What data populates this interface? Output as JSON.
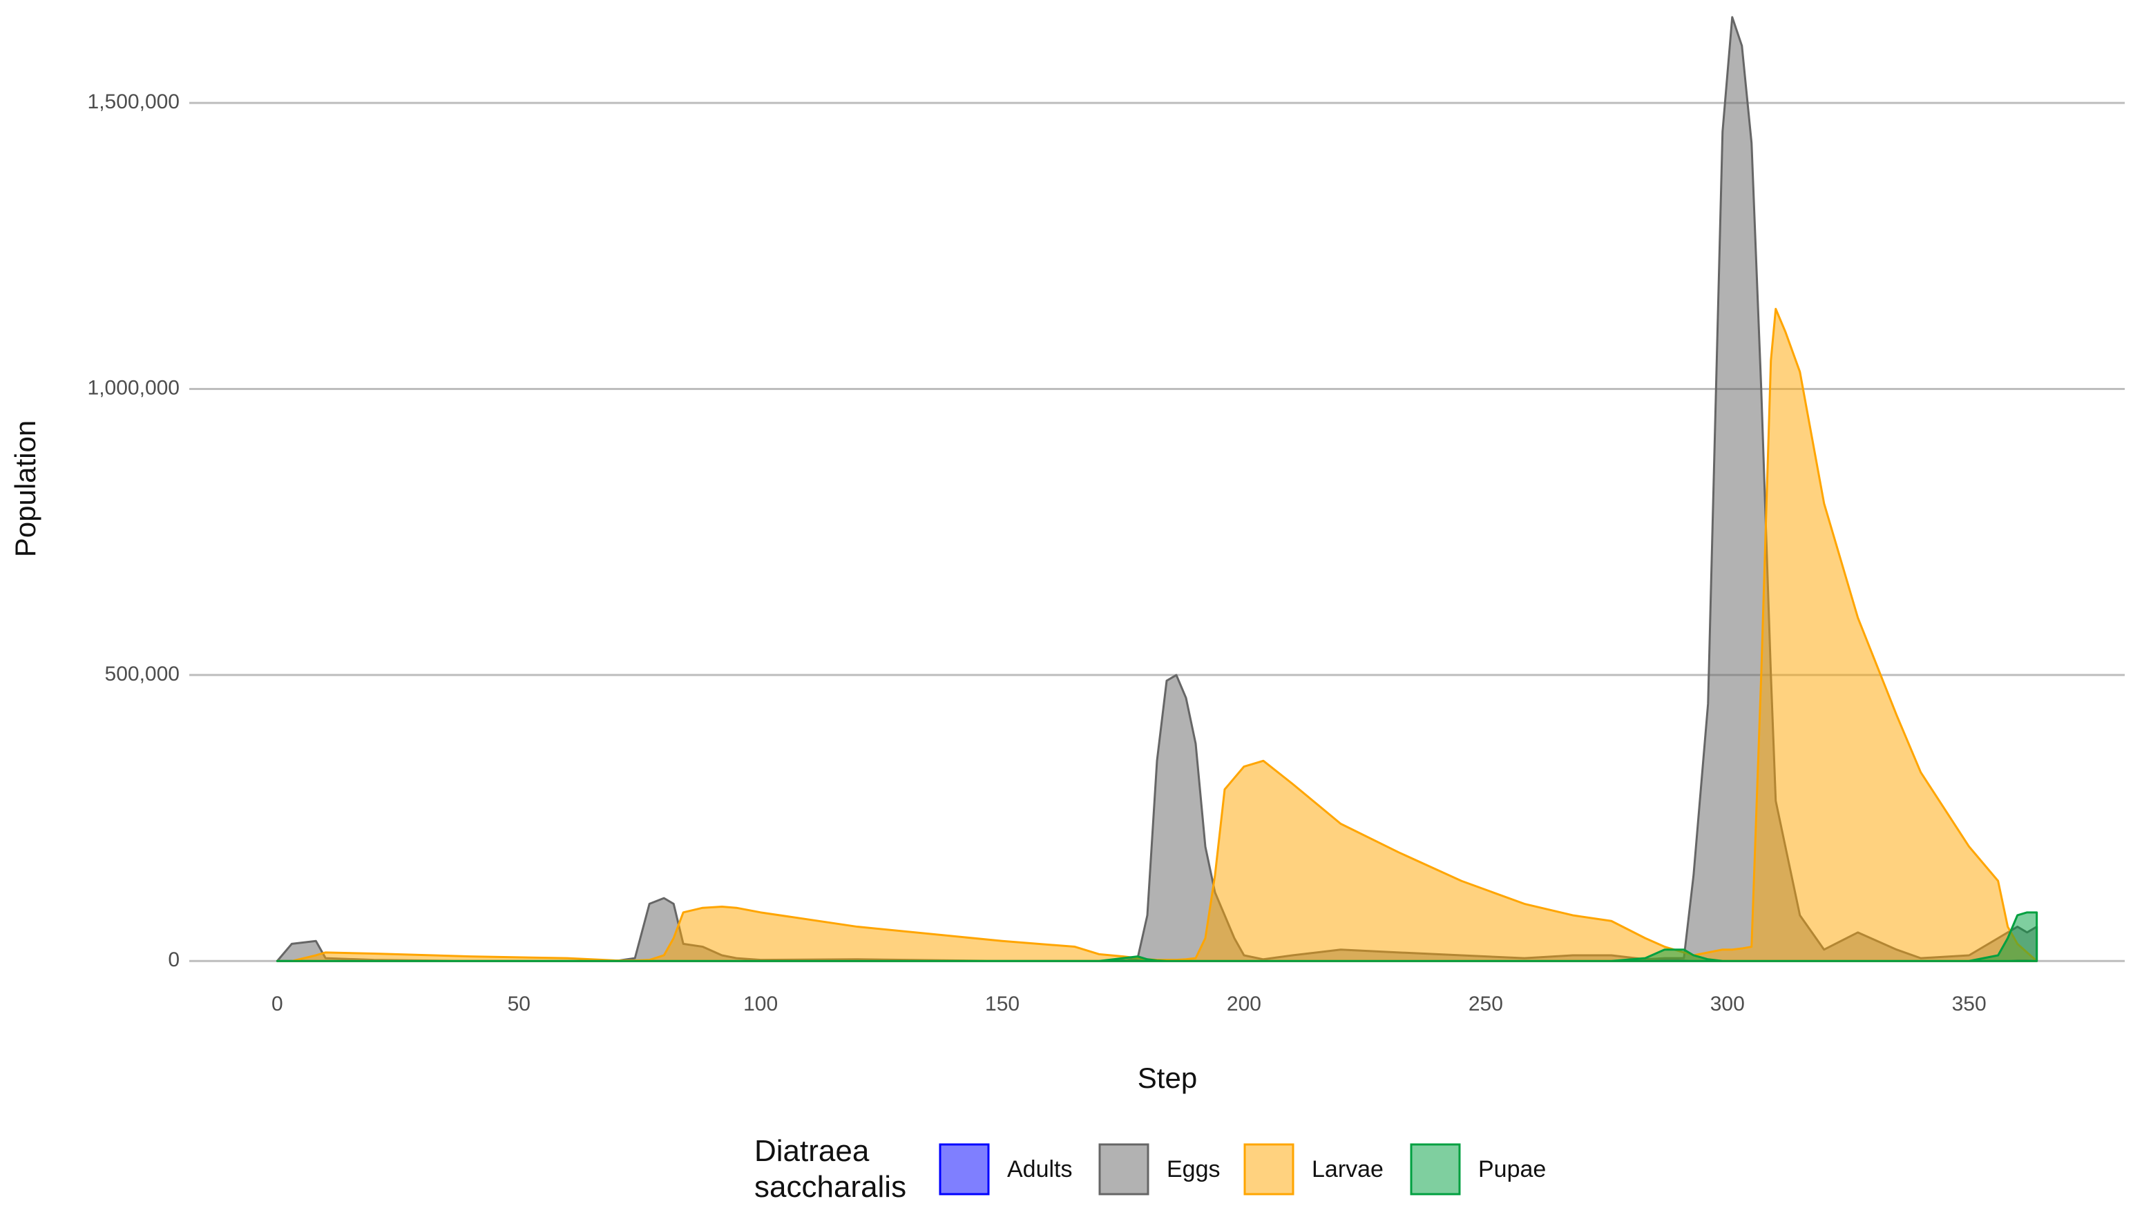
{
  "chart_data": {
    "type": "area",
    "x_label": "Step",
    "y_label": "Population",
    "legend_title": "Diatraea saccharalis",
    "legend_position": "bottom",
    "grid": true,
    "xlim": [
      -18.2,
      382.2
    ],
    "ylim": [
      -60000,
      1680000
    ],
    "xticks": [
      0,
      50,
      100,
      150,
      200,
      250,
      300,
      350
    ],
    "yticks": [
      0,
      {
        "value": 500000,
        "label": "500,000"
      },
      {
        "value": 1000000,
        "label": "1,000,000"
      },
      {
        "value": 1500000,
        "label": "1,500,000"
      }
    ],
    "x": [
      0,
      3,
      8,
      10,
      20,
      40,
      60,
      70,
      74,
      77,
      80,
      82,
      84,
      88,
      92,
      95,
      100,
      120,
      150,
      165,
      170,
      175,
      178,
      180,
      182,
      184,
      186,
      188,
      190,
      192,
      194,
      196,
      198,
      200,
      204,
      210,
      220,
      232,
      245,
      258,
      268,
      276,
      283,
      287,
      291,
      293,
      296,
      299,
      301,
      303,
      305,
      307,
      309,
      310,
      312,
      315,
      320,
      327,
      335,
      340,
      350,
      356,
      358,
      360,
      362,
      364
    ],
    "series": [
      {
        "name": "Adults",
        "color": "#0000ff",
        "values": [
          0,
          0,
          0,
          0,
          0,
          0,
          0,
          0,
          0,
          0,
          0,
          0,
          0,
          0,
          0,
          0,
          0,
          0,
          0,
          0,
          0,
          1000,
          1000,
          0,
          0,
          0,
          0,
          0,
          0,
          0,
          0,
          0,
          0,
          0,
          0,
          0,
          0,
          0,
          0,
          0,
          0,
          0,
          2000,
          3000,
          1000,
          0,
          0,
          0,
          0,
          0,
          0,
          0,
          0,
          0,
          0,
          0,
          0,
          0,
          0,
          0,
          0,
          0,
          0,
          1000,
          1000,
          0
        ]
      },
      {
        "name": "Eggs",
        "color": "#666666",
        "values": [
          0,
          30000,
          35000,
          5000,
          2000,
          0,
          0,
          0,
          5000,
          100000,
          110000,
          100000,
          30000,
          25000,
          10000,
          5000,
          2000,
          3000,
          0,
          0,
          0,
          0,
          5000,
          80000,
          350000,
          490000,
          500000,
          460000,
          380000,
          200000,
          120000,
          80000,
          40000,
          10000,
          3000,
          10000,
          20000,
          15000,
          10000,
          5000,
          10000,
          10000,
          3000,
          5000,
          5000,
          150000,
          450000,
          1450000,
          1650000,
          1600000,
          1430000,
          1000000,
          500000,
          280000,
          200000,
          80000,
          20000,
          50000,
          20000,
          5000,
          10000,
          40000,
          50000,
          60000,
          50000,
          60000
        ]
      },
      {
        "name": "Larvae",
        "color": "#ffa500",
        "values": [
          0,
          0,
          10000,
          15000,
          13000,
          8000,
          5000,
          1000,
          1000,
          2000,
          10000,
          40000,
          85000,
          93000,
          95000,
          93000,
          85000,
          60000,
          35000,
          25000,
          12000,
          8000,
          5000,
          3000,
          2000,
          2000,
          2000,
          3000,
          5000,
          40000,
          150000,
          300000,
          320000,
          340000,
          350000,
          310000,
          240000,
          190000,
          140000,
          100000,
          80000,
          70000,
          40000,
          25000,
          15000,
          10000,
          15000,
          20000,
          20000,
          22000,
          25000,
          500000,
          1050000,
          1140000,
          1100000,
          1030000,
          800000,
          600000,
          430000,
          330000,
          200000,
          140000,
          60000,
          30000,
          15000,
          0
        ]
      },
      {
        "name": "Pupae",
        "color": "#00a040",
        "values": [
          0,
          0,
          0,
          0,
          0,
          0,
          0,
          0,
          0,
          0,
          0,
          0,
          0,
          0,
          0,
          0,
          0,
          0,
          0,
          0,
          0,
          5000,
          8000,
          3000,
          1000,
          0,
          0,
          0,
          0,
          0,
          0,
          0,
          0,
          0,
          0,
          0,
          0,
          0,
          0,
          0,
          0,
          0,
          5000,
          20000,
          20000,
          10000,
          3000,
          0,
          0,
          0,
          0,
          0,
          0,
          0,
          0,
          0,
          0,
          0,
          0,
          0,
          0,
          10000,
          40000,
          80000,
          85000,
          85000
        ]
      }
    ]
  }
}
